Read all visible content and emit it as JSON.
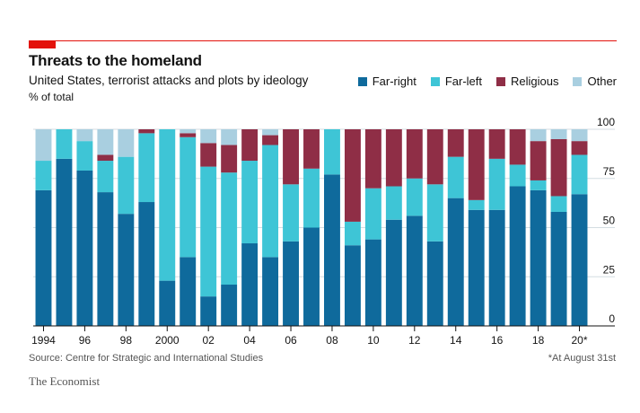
{
  "header": {
    "title": "Threats to the homeland",
    "subtitle": "United States, terrorist attacks and plots by ideology",
    "unit": "% of total"
  },
  "legend": [
    {
      "label": "Far-right",
      "color": "#0f6a9c"
    },
    {
      "label": "Far-left",
      "color": "#3ec5d6"
    },
    {
      "label": "Religious",
      "color": "#8f2e46"
    },
    {
      "label": "Other",
      "color": "#a9cfe0"
    }
  ],
  "footer": {
    "source": "Source: Centre for Strategic and International Studies",
    "footnote": "*At August 31st",
    "brand": "The Economist"
  },
  "chart_data": {
    "type": "bar",
    "stacked": true,
    "title": "Threats to the homeland",
    "ylabel": "% of total",
    "ylim": [
      0,
      100
    ],
    "yticks": [
      0,
      25,
      50,
      75,
      100
    ],
    "grid": true,
    "categories": [
      "1994",
      "1995",
      "1996",
      "1997",
      "1998",
      "1999",
      "2000",
      "2001",
      "2002",
      "2003",
      "2004",
      "2005",
      "2006",
      "2007",
      "2008",
      "2009",
      "2010",
      "2011",
      "2012",
      "2013",
      "2014",
      "2015",
      "2016",
      "2017",
      "2018",
      "2019",
      "2020*"
    ],
    "xtick_labels": [
      "1994",
      "96",
      "98",
      "2000",
      "02",
      "04",
      "06",
      "08",
      "10",
      "12",
      "14",
      "16",
      "18",
      "20*"
    ],
    "xtick_indices": [
      0,
      2,
      4,
      6,
      8,
      10,
      12,
      14,
      16,
      18,
      20,
      22,
      24,
      26
    ],
    "series": [
      {
        "name": "Far-right",
        "color": "#0f6a9c",
        "values": [
          69,
          85,
          79,
          68,
          57,
          63,
          23,
          35,
          15,
          21,
          42,
          35,
          43,
          50,
          77,
          41,
          44,
          54,
          56,
          43,
          65,
          59,
          59,
          71,
          69,
          58,
          67
        ]
      },
      {
        "name": "Far-left",
        "color": "#3ec5d6",
        "values": [
          15,
          15,
          15,
          16,
          29,
          35,
          77,
          61,
          66,
          57,
          42,
          57,
          29,
          30,
          23,
          12,
          26,
          17,
          19,
          29,
          21,
          5,
          26,
          11,
          5,
          8,
          20
        ]
      },
      {
        "name": "Religious",
        "color": "#8f2e46",
        "values": [
          0,
          0,
          0,
          3,
          0,
          2,
          0,
          2,
          12,
          14,
          16,
          5,
          28,
          20,
          0,
          47,
          30,
          29,
          25,
          28,
          14,
          36,
          15,
          18,
          20,
          29,
          7
        ]
      },
      {
        "name": "Other",
        "color": "#a9cfe0",
        "values": [
          16,
          0,
          6,
          13,
          14,
          0,
          0,
          2,
          7,
          8,
          0,
          3,
          0,
          0,
          0,
          0,
          0,
          0,
          0,
          0,
          0,
          0,
          0,
          0,
          6,
          5,
          6
        ]
      }
    ]
  }
}
